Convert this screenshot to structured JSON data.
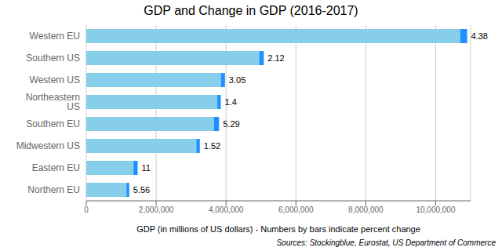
{
  "chart_data": {
    "type": "bar",
    "orientation": "horizontal",
    "stacked": true,
    "title": "GDP and Change in GDP (2016-2017)",
    "xlabel": "GDP (in millions of US dollars) - Numbers by bars indicate percent change",
    "annotations": [
      "Sources: Stockingblue, Eurostat, US Department of Commerce"
    ],
    "categories": [
      "Northern EU",
      "Eastern EU",
      "Midwestern US",
      "Southern EU",
      "Northeastern US",
      "Western US",
      "Southern US",
      "Western EU"
    ],
    "series": [
      {
        "color": "#87CEEB",
        "values": [
          1150000,
          1350000,
          3150000,
          3650000,
          3750000,
          3850000,
          4950000,
          10700000
        ]
      },
      {
        "color": "#1E90FF",
        "values": [
          80000,
          120000,
          100000,
          150000,
          100000,
          120000,
          130000,
          200000
        ]
      }
    ],
    "pct_changes": [
      5.56,
      11,
      1.52,
      5.29,
      1.4,
      3.05,
      2.12,
      4.38
    ],
    "xlim": [
      0,
      11000000
    ],
    "xticks": [
      0,
      {
        "value": 2000000,
        "label": "2,000,000"
      },
      {
        "value": 4000000,
        "label": "4,000,000"
      },
      {
        "value": 6000000,
        "label": "6,000,000"
      },
      {
        "value": 8000000,
        "label": "8,000,000"
      },
      {
        "value": 10000000,
        "label": "10,000,000"
      }
    ],
    "grid": true
  }
}
